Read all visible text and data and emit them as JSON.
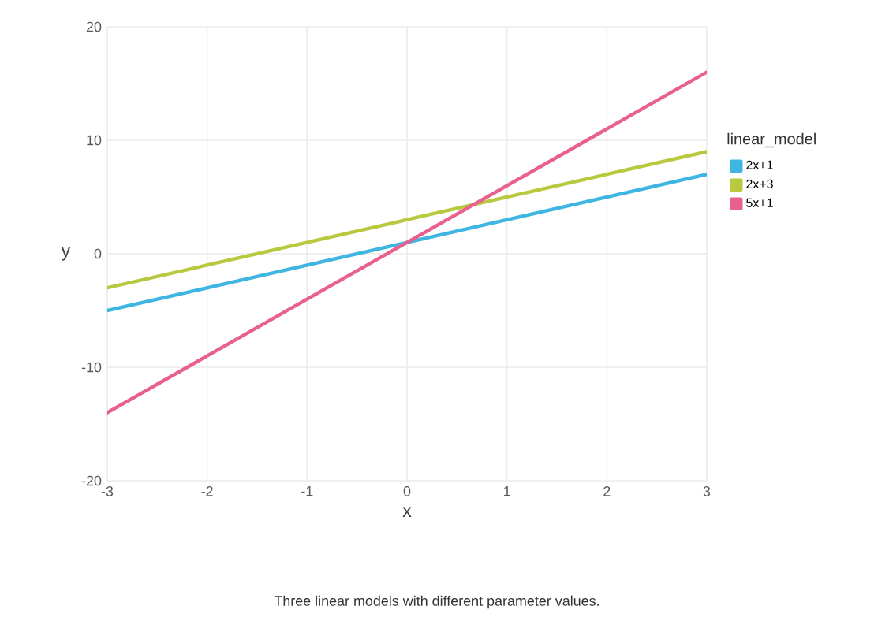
{
  "chart_data": {
    "type": "line",
    "xlabel": "x",
    "ylabel": "y",
    "legend_title": "linear_model",
    "x": [
      -3,
      3
    ],
    "series": [
      {
        "name": "2x+1",
        "color": "#3fb6e2",
        "values": [
          -5,
          7
        ]
      },
      {
        "name": "2x+3",
        "color": "#b8c940",
        "values": [
          -3,
          9
        ]
      },
      {
        "name": "5x+1",
        "color": "#e8608f",
        "values": [
          -14,
          16
        ]
      }
    ],
    "xlim": [
      -3,
      3
    ],
    "ylim": [
      -20,
      20
    ],
    "xticks": [
      -3,
      -2,
      -1,
      0,
      1,
      2,
      3
    ],
    "yticks": [
      -20,
      -10,
      0,
      10,
      20
    ],
    "grid": true,
    "legend": "right",
    "line_style": "solid",
    "marker": "none",
    "annotations": [
      "Three linear models with different parameter values."
    ]
  }
}
